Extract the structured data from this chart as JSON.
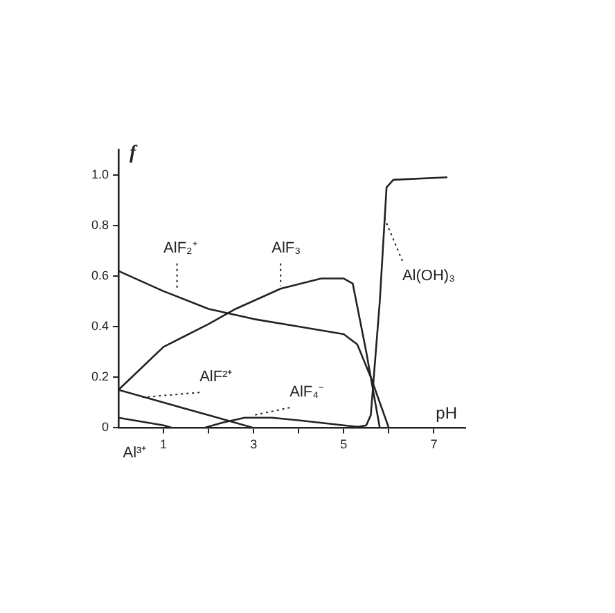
{
  "chart_data": {
    "type": "line",
    "xlabel": "pH",
    "ylabel": "f",
    "xlim": [
      0,
      7.7
    ],
    "ylim": [
      0,
      1.1
    ],
    "xticks": [
      1,
      {
        "value": 2,
        "label": null
      },
      3,
      {
        "value": 4,
        "label": null
      },
      5,
      {
        "value": 6,
        "label": null
      },
      7
    ],
    "yticks": [
      0,
      0.2,
      0.4,
      0.6,
      0.8,
      {
        "value": 1,
        "label": "1.0"
      }
    ],
    "grid": false,
    "legend": false,
    "marker": "none",
    "line_style": "solid",
    "series": [
      {
        "name": "AlF₂⁺",
        "color": "#222222",
        "x": [
          0,
          1,
          2,
          3,
          4,
          5,
          5.3,
          5.6,
          6
        ],
        "values": [
          0.62,
          0.54,
          0.47,
          0.43,
          0.4,
          0.37,
          0.33,
          0.2,
          0
        ]
      },
      {
        "name": "AlF₃",
        "color": "#222222",
        "x": [
          0,
          1,
          2,
          2.6,
          3.6,
          4.5,
          5,
          5.2,
          5.5,
          5.8
        ],
        "values": [
          0.15,
          0.32,
          0.41,
          0.47,
          0.55,
          0.59,
          0.59,
          0.57,
          0.3,
          0
        ]
      },
      {
        "name": "Al(OH)₃",
        "color": "#222222",
        "x": [
          5.2,
          5.5,
          5.6,
          5.8,
          5.95,
          6.1,
          7.3
        ],
        "values": [
          0,
          0.01,
          0.05,
          0.5,
          0.95,
          0.98,
          0.99
        ]
      },
      {
        "name": "AlF²⁺",
        "color": "#222222",
        "x": [
          0,
          1,
          2,
          3
        ],
        "values": [
          0.15,
          0.1,
          0.05,
          0
        ]
      },
      {
        "name": "AlF₄⁻",
        "color": "#222222",
        "x": [
          1.9,
          2.3,
          2.8,
          3.4,
          4,
          5,
          5.5
        ],
        "values": [
          0,
          0.02,
          0.04,
          0.04,
          0.03,
          0.01,
          0
        ]
      },
      {
        "name": "Al³⁺",
        "color": "#222222",
        "x": [
          0,
          1,
          1.2
        ],
        "values": [
          0.04,
          0.01,
          0
        ]
      }
    ]
  }
}
